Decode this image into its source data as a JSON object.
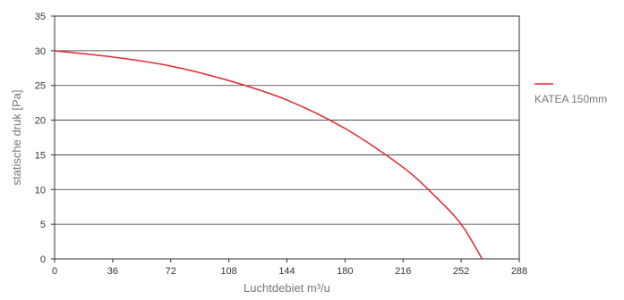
{
  "chart_data": {
    "type": "line",
    "title": "",
    "xlabel": "Luchtdebiet m³/u",
    "ylabel": "statische druk [Pa]",
    "xlim": [
      0,
      288
    ],
    "ylim": [
      0,
      35
    ],
    "x_ticks": [
      0,
      36,
      72,
      108,
      144,
      180,
      216,
      252,
      288
    ],
    "y_ticks": [
      0,
      5,
      10,
      15,
      20,
      25,
      30,
      35
    ],
    "grid": "horizontal",
    "legend_position": "right",
    "series": [
      {
        "name": "KATEA 150mm",
        "color": "#e3262e",
        "x": [
          0,
          36,
          72,
          108,
          144,
          180,
          216,
          236,
          252,
          265
        ],
        "y": [
          30,
          29.1,
          27.8,
          25.7,
          22.9,
          18.8,
          13.2,
          9.0,
          5.0,
          0
        ]
      }
    ]
  }
}
